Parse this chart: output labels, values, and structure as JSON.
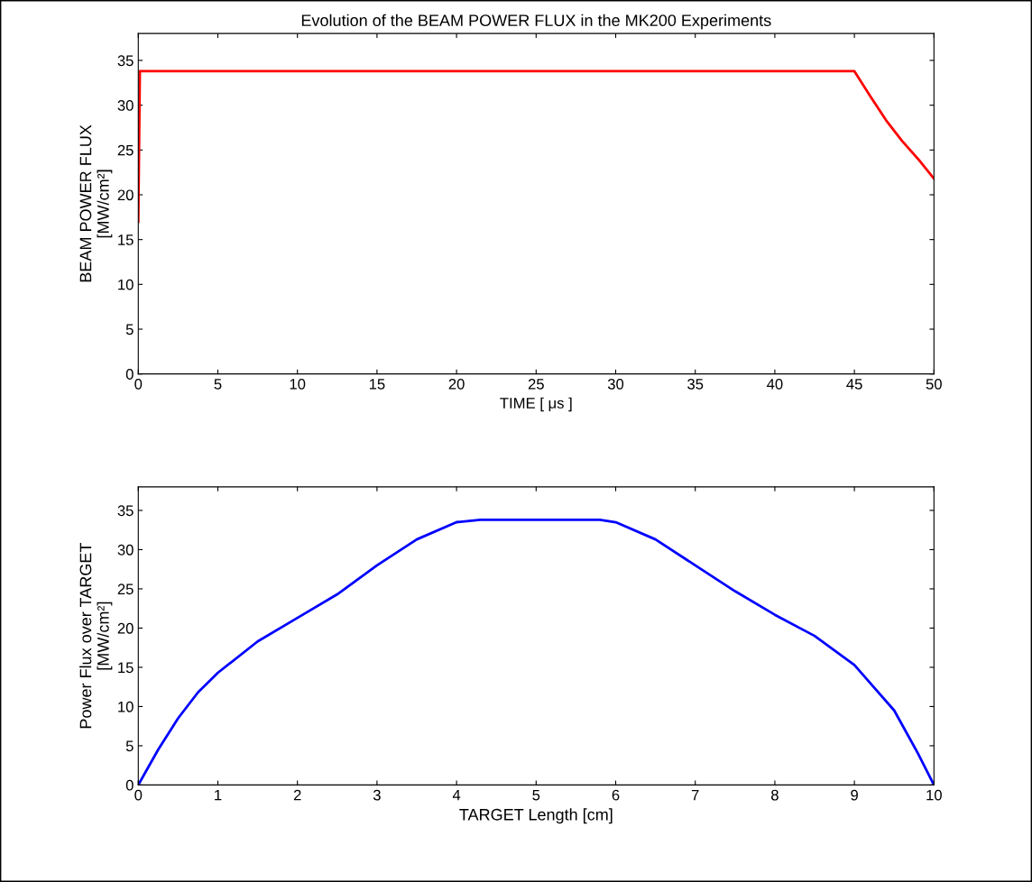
{
  "chart_data": [
    {
      "type": "line",
      "title": "Evolution of the BEAM POWER FLUX in the MK200 Experiments",
      "xlabel": "TIME [ μs ]",
      "ylabel": "BEAM POWER FLUX\n[MW/cm²]",
      "x": [
        0,
        0.1,
        45,
        46,
        47,
        48,
        49,
        50
      ],
      "series": [
        {
          "color": "#ff0000",
          "values": [
            17,
            33.8,
            33.8,
            31,
            28.3,
            26,
            24,
            21.8
          ]
        }
      ],
      "xlim": [
        0,
        50
      ],
      "ylim": [
        0,
        38
      ],
      "xticks": [
        0,
        5,
        10,
        15,
        20,
        25,
        30,
        35,
        40,
        45,
        50
      ],
      "yticks": [
        0,
        5,
        10,
        15,
        20,
        25,
        30,
        35
      ],
      "grid": false,
      "line_style": "solid",
      "marker": "none"
    },
    {
      "type": "line",
      "xlabel": "TARGET Length [cm]",
      "ylabel": "Power Flux over TARGET\n[MW/cm²]",
      "x": [
        0,
        0.25,
        0.5,
        0.75,
        1,
        1.5,
        2,
        2.5,
        3,
        3.5,
        4,
        4.3,
        5,
        5.8,
        6,
        6.5,
        7,
        7.5,
        8,
        8.5,
        9,
        9.5,
        9.8,
        10
      ],
      "series": [
        {
          "color": "#0000ff",
          "values": [
            0,
            4.5,
            8.5,
            11.8,
            14.3,
            18.3,
            21.3,
            24.3,
            28,
            31.3,
            33.5,
            33.8,
            33.8,
            33.8,
            33.5,
            31.3,
            28,
            24.7,
            21.7,
            19,
            15.3,
            9.5,
            4,
            0
          ]
        }
      ],
      "xlim": [
        0,
        10
      ],
      "ylim": [
        0,
        38
      ],
      "xticks": [
        0,
        1,
        2,
        3,
        4,
        5,
        6,
        7,
        8,
        9,
        10
      ],
      "yticks": [
        0,
        5,
        10,
        15,
        20,
        25,
        30,
        35
      ],
      "grid": false,
      "line_style": "solid",
      "marker": "none"
    }
  ]
}
